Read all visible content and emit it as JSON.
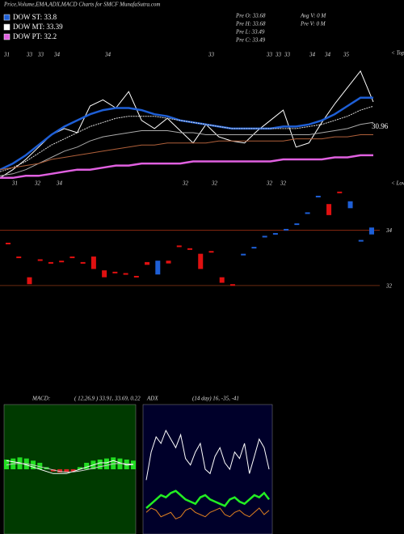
{
  "header": {
    "title": "Price,Volume,EMA,ADX,MACD Charts for SMCF MunafaSutra.com"
  },
  "legend": [
    {
      "name": "DOW ST: 33.8",
      "color": "#1e5fd6"
    },
    {
      "name": "DOW MT: 33.39",
      "color": "#ffffff"
    },
    {
      "name": "DOW PT: 32.2",
      "color": "#e060e0"
    }
  ],
  "info": [
    "Pre O: 33.68",
    "Pre H: 33.68",
    "Pre L: 33.49",
    "Pre C: 33.49",
    "Avg V: 0 M",
    "Pre V: 0 M"
  ],
  "chart_data": [
    {
      "type": "line",
      "ylim": [
        29.5,
        36
      ],
      "last_label": "30.96",
      "tops_label": "< Tops",
      "lows_label": "< Lows",
      "tops": [
        "31",
        "33",
        "33",
        "34",
        "34",
        "33",
        "33",
        "33",
        "33",
        "34",
        "34",
        "35"
      ],
      "lows": [
        "31",
        "32",
        "34",
        "32",
        "32",
        "32",
        "32"
      ],
      "series": [
        {
          "color": "#ffffff",
          "values": [
            29.9,
            30.3,
            30.8,
            31.4,
            32.0,
            32.3,
            32.1,
            33.4,
            33.7,
            33.3,
            34.1,
            32.7,
            32.3,
            32.8,
            32.2,
            31.6,
            32.5,
            31.9,
            31.7,
            31.6,
            32.2,
            32.7,
            33.2,
            31.4,
            31.6,
            32.6,
            33.5,
            34.3,
            35.1,
            33.6
          ]
        },
        {
          "color": "#1e5fd6",
          "values": [
            30.3,
            30.6,
            31.0,
            31.5,
            32.0,
            32.4,
            32.7,
            33.0,
            33.2,
            33.3,
            33.3,
            33.2,
            33.0,
            32.9,
            32.7,
            32.6,
            32.5,
            32.4,
            32.3,
            32.3,
            32.3,
            32.3,
            32.4,
            32.4,
            32.5,
            32.7,
            33.0,
            33.4,
            33.8,
            33.8
          ]
        },
        {
          "color": "#dddddd",
          "values": [
            30.2,
            30.4,
            30.7,
            31.1,
            31.5,
            31.8,
            32.1,
            32.4,
            32.6,
            32.8,
            32.9,
            32.9,
            32.9,
            32.8,
            32.7,
            32.6,
            32.5,
            32.4,
            32.3,
            32.3,
            32.3,
            32.3,
            32.3,
            32.3,
            32.4,
            32.5,
            32.7,
            32.9,
            33.2,
            33.39
          ]
        },
        {
          "color": "#aaaaaa",
          "values": [
            30.0,
            30.1,
            30.3,
            30.6,
            30.9,
            31.2,
            31.4,
            31.7,
            31.9,
            32.0,
            32.1,
            32.2,
            32.2,
            32.2,
            32.1,
            32.1,
            32.0,
            32.0,
            32.0,
            32.0,
            32.0,
            32.0,
            32.0,
            32.0,
            32.0,
            32.1,
            32.2,
            32.3,
            32.5,
            32.6
          ]
        },
        {
          "color": "#b0603a",
          "values": [
            30.3,
            30.4,
            30.5,
            30.6,
            30.8,
            30.9,
            31.0,
            31.1,
            31.2,
            31.3,
            31.4,
            31.5,
            31.5,
            31.6,
            31.6,
            31.6,
            31.6,
            31.7,
            31.7,
            31.7,
            31.7,
            31.7,
            31.7,
            31.8,
            31.8,
            31.8,
            31.9,
            31.9,
            32.0,
            32.0
          ]
        },
        {
          "color": "#e060e0",
          "values": [
            29.9,
            29.9,
            30.0,
            30.0,
            30.1,
            30.2,
            30.3,
            30.3,
            30.4,
            30.5,
            30.5,
            30.6,
            30.6,
            30.6,
            30.6,
            30.7,
            30.7,
            30.7,
            30.7,
            30.7,
            30.7,
            30.7,
            30.8,
            30.8,
            30.8,
            30.8,
            30.9,
            30.9,
            31.0,
            31.0
          ]
        }
      ]
    },
    {
      "type": "candlestick",
      "ylim": [
        31.5,
        35.6
      ],
      "yticks": [
        32,
        34
      ],
      "up_color": "#1e5fd6",
      "down_color": "#e01010",
      "open": [
        33.55,
        33.05,
        32.3,
        32.95,
        32.85,
        32.9,
        33.05,
        32.85,
        33.05,
        32.55,
        32.5,
        32.45,
        32.35,
        32.85,
        32.4,
        32.9,
        33.45,
        33.35,
        33.15,
        33.25,
        32.3,
        32.05,
        33.1,
        33.35,
        33.75,
        33.85,
        34.0,
        34.2,
        34.6,
        35.2,
        34.95,
        35.4,
        34.8,
        33.6,
        33.85
      ],
      "close": [
        33.5,
        33.0,
        32.05,
        32.9,
        32.8,
        32.85,
        33.0,
        32.8,
        32.6,
        32.3,
        32.45,
        32.4,
        32.3,
        32.75,
        32.9,
        32.8,
        33.4,
        33.3,
        32.6,
        33.2,
        32.1,
        32.0,
        33.15,
        33.4,
        33.8,
        33.9,
        34.05,
        34.25,
        34.65,
        35.25,
        34.55,
        35.35,
        35.05,
        33.65,
        34.1
      ]
    },
    {
      "type": "macd",
      "label": "MACD:",
      "params": "( 12,26,9 ) 33.91, 33.69, 0.22",
      "ylim": [
        -3,
        3
      ],
      "bar_color": "#22dd22",
      "neg_color": "#dd2222",
      "macd": [
        0.4,
        0.35,
        0.3,
        0.2,
        0.1,
        0.0,
        -0.1,
        -0.2,
        -0.2,
        -0.2,
        -0.1,
        0.0,
        0.1,
        0.2,
        0.3,
        0.3,
        0.4,
        0.3,
        0.2,
        0.22
      ],
      "signal": [
        0.2,
        0.25,
        0.27,
        0.25,
        0.2,
        0.12,
        0.05,
        -0.03,
        -0.1,
        -0.13,
        -0.12,
        -0.08,
        -0.02,
        0.05,
        0.12,
        0.18,
        0.25,
        0.27,
        0.25,
        0.24
      ],
      "hist": [
        0.45,
        0.5,
        0.55,
        0.5,
        0.4,
        0.3,
        0.1,
        -0.1,
        -0.15,
        -0.15,
        -0.1,
        0.1,
        0.3,
        0.4,
        0.45,
        0.5,
        0.55,
        0.5,
        0.45,
        0.4
      ]
    },
    {
      "type": "adx",
      "label": "ADX",
      "params": "(14 day) 16, -35, -41",
      "ylim": [
        0,
        60
      ],
      "series": [
        {
          "color": "#ffffff",
          "values": [
            25,
            38,
            45,
            42,
            48,
            44,
            40,
            46,
            35,
            32,
            38,
            42,
            30,
            28,
            36,
            40,
            33,
            30,
            38,
            35,
            42,
            28,
            36,
            44,
            40,
            30
          ]
        },
        {
          "color": "#22ee22",
          "values": [
            12,
            14,
            16,
            18,
            17,
            19,
            20,
            18,
            16,
            15,
            14,
            17,
            18,
            16,
            15,
            14,
            13,
            16,
            17,
            15,
            14,
            16,
            18,
            17,
            19,
            16
          ]
        },
        {
          "color": "#e08020",
          "values": [
            10,
            12,
            11,
            8,
            9,
            10,
            7,
            8,
            11,
            12,
            10,
            9,
            8,
            10,
            11,
            12,
            9,
            8,
            10,
            11,
            9,
            8,
            10,
            12,
            9,
            11
          ]
        }
      ]
    }
  ]
}
